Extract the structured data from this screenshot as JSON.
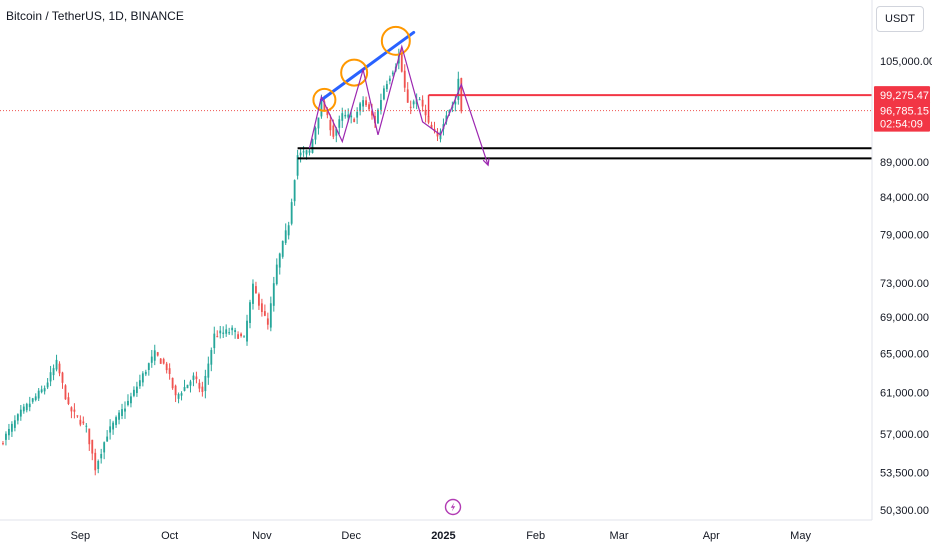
{
  "header": {
    "symbol_title": "Bitcoin / TetherUS, 1D, BINANCE",
    "currency_button": "USDT"
  },
  "colors": {
    "up": "#26a69a",
    "down": "#ef5350",
    "price_line": "#ef5350",
    "resistance_line": "#f23645",
    "support_line": "#000000",
    "trend_line": "#2962ff",
    "circles": "#ff9800",
    "projection": "#9c27b0",
    "badge_bg": "#f23645"
  },
  "chart_data": {
    "type": "candlestick",
    "symbol": "BTC/USDT",
    "interval": "1D",
    "y_scale": "log",
    "y_ticks": [
      "105,000.00",
      "89,000.00",
      "84,000.00",
      "79,000.00",
      "73,000.00",
      "69,000.00",
      "65,000.00",
      "61,000.00",
      "57,000.00",
      "53,500.00",
      "50,300.00"
    ],
    "y_tick_values": [
      105000,
      89000,
      84000,
      79000,
      73000,
      69000,
      65000,
      61000,
      57000,
      53500,
      50300
    ],
    "x_ticks": [
      "Sep",
      "Oct",
      "Nov",
      "Dec",
      "2025",
      "Feb",
      "Mar",
      "Apr",
      "May"
    ],
    "x_tick_dates": [
      "2024-09-01",
      "2024-10-01",
      "2024-11-01",
      "2024-12-01",
      "2025-01-01",
      "2025-02-01",
      "2025-03-01",
      "2025-04-01",
      "2025-05-01"
    ],
    "x_range": [
      "2024-08-05",
      "2025-05-25"
    ],
    "y_range": [
      49500,
      116000
    ],
    "current_price": 96785.15,
    "current_price_label": "96,785.15",
    "countdown": "02:54:09",
    "resistance_level": 99275.47,
    "resistance_label": "99,275.47",
    "support_levels": [
      91000,
      89500
    ],
    "close_anchors": [
      {
        "date": "2024-08-05",
        "close": 56000
      },
      {
        "date": "2024-08-12",
        "close": 59000
      },
      {
        "date": "2024-08-20",
        "close": 61500
      },
      {
        "date": "2024-08-24",
        "close": 64000
      },
      {
        "date": "2024-08-28",
        "close": 59500
      },
      {
        "date": "2024-09-03",
        "close": 57500
      },
      {
        "date": "2024-09-06",
        "close": 53900
      },
      {
        "date": "2024-09-10",
        "close": 57000
      },
      {
        "date": "2024-09-18",
        "close": 60500
      },
      {
        "date": "2024-09-26",
        "close": 65000
      },
      {
        "date": "2024-09-30",
        "close": 63500
      },
      {
        "date": "2024-10-03",
        "close": 60500
      },
      {
        "date": "2024-10-09",
        "close": 62500
      },
      {
        "date": "2024-10-12",
        "close": 61000
      },
      {
        "date": "2024-10-16",
        "close": 67000
      },
      {
        "date": "2024-10-22",
        "close": 67500
      },
      {
        "date": "2024-10-26",
        "close": 66500
      },
      {
        "date": "2024-10-29",
        "close": 72500
      },
      {
        "date": "2024-11-03",
        "close": 68000
      },
      {
        "date": "2024-11-06",
        "close": 75000
      },
      {
        "date": "2024-11-10",
        "close": 80500
      },
      {
        "date": "2024-11-13",
        "close": 90000
      },
      {
        "date": "2024-11-17",
        "close": 90500
      },
      {
        "date": "2024-11-21",
        "close": 98000
      },
      {
        "date": "2024-11-25",
        "close": 93000
      },
      {
        "date": "2024-11-28",
        "close": 96000
      },
      {
        "date": "2024-12-02",
        "close": 95500
      },
      {
        "date": "2024-12-05",
        "close": 98500
      },
      {
        "date": "2024-12-09",
        "close": 95000
      },
      {
        "date": "2024-12-12",
        "close": 100500
      },
      {
        "date": "2024-12-16",
        "close": 104500
      },
      {
        "date": "2024-12-17",
        "close": 106000
      },
      {
        "date": "2024-12-20",
        "close": 97500
      },
      {
        "date": "2024-12-24",
        "close": 98500
      },
      {
        "date": "2024-12-27",
        "close": 94500
      },
      {
        "date": "2024-12-30",
        "close": 92500
      },
      {
        "date": "2025-01-02",
        "close": 96500
      },
      {
        "date": "2025-01-05",
        "close": 98300
      },
      {
        "date": "2025-01-06",
        "close": 102000
      },
      {
        "date": "2025-01-07",
        "close": 96785.15
      }
    ]
  },
  "drawings": {
    "trend_line": {
      "from": {
        "date": "2024-11-21",
        "price": 98500
      },
      "to": {
        "date": "2024-12-22",
        "price": 110000
      }
    },
    "circles": [
      {
        "date": "2024-11-22",
        "price": 98500
      },
      {
        "date": "2024-12-02",
        "price": 103000
      },
      {
        "date": "2024-12-16",
        "price": 108500
      }
    ],
    "projection": [
      {
        "date": "2024-11-17",
        "price": 91000
      },
      {
        "date": "2024-11-21",
        "price": 99000
      },
      {
        "date": "2024-11-28",
        "price": 92000
      },
      {
        "date": "2024-12-05",
        "price": 103500
      },
      {
        "date": "2024-12-10",
        "price": 93000
      },
      {
        "date": "2024-12-18",
        "price": 107500
      },
      {
        "date": "2024-12-25",
        "price": 95000
      },
      {
        "date": "2024-12-31",
        "price": 93000
      },
      {
        "date": "2025-01-07",
        "price": 101000
      },
      {
        "date": "2025-01-16",
        "price": 88500
      }
    ]
  }
}
